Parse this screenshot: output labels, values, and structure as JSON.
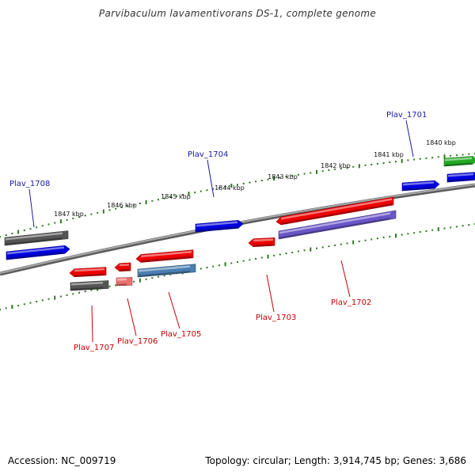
{
  "title": "Parvibaculum lavamentivorans DS-1, complete genome",
  "footer": {
    "accession": "Accession: NC_009719",
    "topology": "Topology: circular; Length: 3,914,745 bp; Genes: 3,686"
  },
  "colors": {
    "ruler": "#2a7a1a",
    "backbone": "#7a7a7a",
    "label_top": "#1a1aa8",
    "label_bottom": "#c40000",
    "tick_text": "#111111"
  },
  "ruler_upper": {
    "ticks_kbp": [
      {
        "label": "1847 kbp"
      },
      {
        "label": "1846 kbp"
      },
      {
        "label": "1845 kbp"
      },
      {
        "label": "1844 kbp"
      },
      {
        "label": "1843 kbp"
      },
      {
        "label": "1842 kbp"
      },
      {
        "label": "1841 kbp"
      },
      {
        "label": "1840 kbp"
      }
    ]
  },
  "gene_labels": [
    {
      "name": "Plav_1708",
      "strand": "top"
    },
    {
      "name": "Plav_1704",
      "strand": "top"
    },
    {
      "name": "Plav_1701",
      "strand": "top"
    },
    {
      "name": "Plav_1707",
      "strand": "bottom"
    },
    {
      "name": "Plav_1706",
      "strand": "bottom"
    },
    {
      "name": "Plav_1705",
      "strand": "bottom"
    },
    {
      "name": "Plav_1703",
      "strand": "bottom"
    },
    {
      "name": "Plav_1702",
      "strand": "bottom"
    }
  ],
  "features": [
    {
      "id": "f-1708-grey",
      "color": "#555555",
      "dir": "none"
    },
    {
      "id": "f-1708-blue",
      "color": "#0000dd",
      "dir": "right"
    },
    {
      "id": "f-1704",
      "color": "#0000dd",
      "dir": "right"
    },
    {
      "id": "f-1701-blue",
      "color": "#0000dd",
      "dir": "right"
    },
    {
      "id": "f-green",
      "color": "#22aa22",
      "dir": "right"
    },
    {
      "id": "f-blue-edge",
      "color": "#0000dd",
      "dir": "right"
    },
    {
      "id": "f-1707-red",
      "color": "#ee0000",
      "dir": "left"
    },
    {
      "id": "f-1707-grey",
      "color": "#555555",
      "dir": "none"
    },
    {
      "id": "f-1706-red",
      "color": "#ee0000",
      "dir": "left"
    },
    {
      "id": "f-1706-pink",
      "color": "#ee6e6e",
      "dir": "none"
    },
    {
      "id": "f-1705-red",
      "color": "#ee0000",
      "dir": "left"
    },
    {
      "id": "f-1705-steel",
      "color": "#4a7fb0",
      "dir": "none"
    },
    {
      "id": "f-1703",
      "color": "#ee0000",
      "dir": "left"
    },
    {
      "id": "f-1702-red",
      "color": "#ee0000",
      "dir": "left"
    },
    {
      "id": "f-1702-purple",
      "color": "#6a56c8",
      "dir": "none"
    }
  ]
}
